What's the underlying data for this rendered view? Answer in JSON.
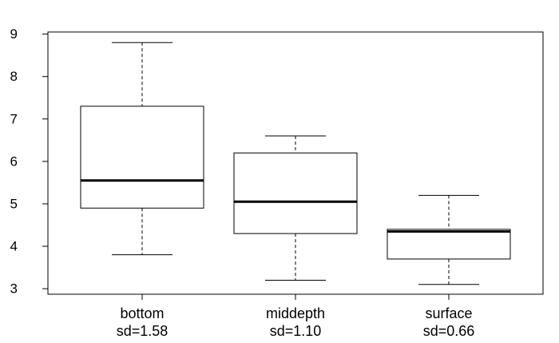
{
  "chart_data": {
    "type": "box",
    "title": "",
    "xlabel": "",
    "ylabel": "",
    "ylim": [
      2.87,
      9.05
    ],
    "yticks": [
      3,
      4,
      5,
      6,
      7,
      8,
      9
    ],
    "grid": false,
    "categories": [
      {
        "name": "bottom",
        "sd_label": "sd=1.58",
        "whisker_low": 3.8,
        "q1": 4.9,
        "median": 5.55,
        "q3": 7.3,
        "whisker_high": 8.8
      },
      {
        "name": "middepth",
        "sd_label": "sd=1.10",
        "whisker_low": 3.2,
        "q1": 4.3,
        "median": 5.05,
        "q3": 6.2,
        "whisker_high": 6.6
      },
      {
        "name": "surface",
        "sd_label": "sd=0.66",
        "whisker_low": 3.1,
        "q1": 3.7,
        "median": 4.35,
        "q3": 4.4,
        "whisker_high": 5.2
      }
    ]
  }
}
